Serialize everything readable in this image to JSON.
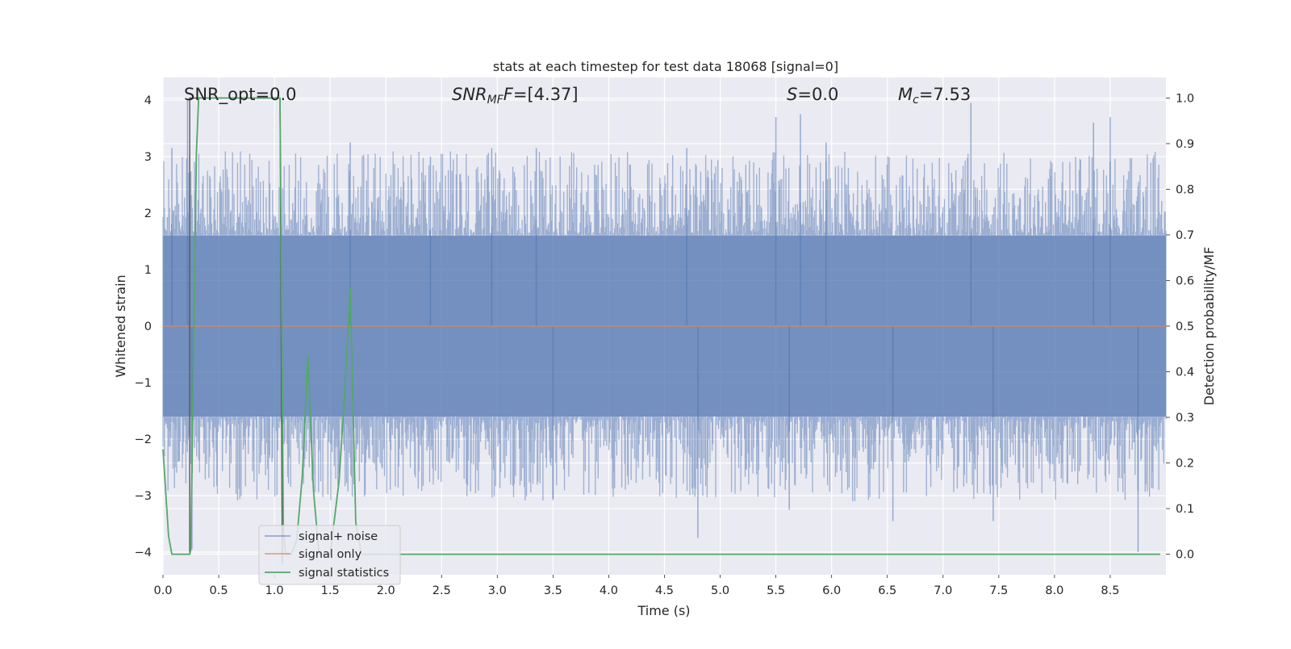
{
  "chart_data": {
    "type": "line",
    "title": "stats at each timestep for test data 18068 [signal=0]",
    "xlabel": "Time (s)",
    "ylabel": "Whitened strain",
    "y2label": "Detection probability/MF",
    "xlim": [
      0.0,
      9.0
    ],
    "ylim": [
      -4.4,
      4.4
    ],
    "y2lim": [
      -0.045,
      1.045
    ],
    "x_ticks": [
      "0.0",
      "0.5",
      "1.0",
      "1.5",
      "2.0",
      "2.5",
      "3.0",
      "3.5",
      "4.0",
      "4.5",
      "5.0",
      "5.5",
      "6.0",
      "6.5",
      "7.0",
      "7.5",
      "8.0",
      "8.5"
    ],
    "y_ticks": [
      "4",
      "3",
      "2",
      "1",
      "0",
      "−1",
      "−2",
      "−3",
      "−4"
    ],
    "y2_ticks": [
      "1.0",
      "0.9",
      "0.8",
      "0.7",
      "0.6",
      "0.5",
      "0.4",
      "0.3",
      "0.2",
      "0.1",
      "0.0"
    ],
    "grid": true,
    "legend_position": "lower-left",
    "annotations": {
      "snr_opt": "SNR_opt=0.0",
      "snr_mf_main": "SNR",
      "snr_mf_sub": "MF",
      "snr_mf_value": "=[4.37]",
      "s_main": "S",
      "s_value": "=0.0",
      "mc_main": "M",
      "mc_sub": "c",
      "mc_value": "=7.53"
    },
    "colors": {
      "background": "#EAEAF2",
      "grid": "#FFFFFF",
      "noise": "#4C72B0",
      "signal_only": "#DD8452",
      "statistics": "#55A868",
      "marker": "#555555"
    },
    "series": [
      {
        "name": "signal+ noise",
        "style": "dense random noise band, |y| mostly up to ~2.5 with spikes to ~4",
        "x_range": [
          0.0,
          9.0
        ],
        "noise_band_abs": 1.6,
        "peak_spikes": [
          {
            "x": 0.08,
            "y": 3.15
          },
          {
            "x": 0.22,
            "y": 4.0
          },
          {
            "x": 0.26,
            "y": -3.95
          },
          {
            "x": 1.68,
            "y": 3.25
          },
          {
            "x": 2.4,
            "y": 3.0
          },
          {
            "x": 2.95,
            "y": 3.15
          },
          {
            "x": 3.35,
            "y": 3.15
          },
          {
            "x": 3.5,
            "y": -3.05
          },
          {
            "x": 4.7,
            "y": 3.15
          },
          {
            "x": 4.8,
            "y": -3.75
          },
          {
            "x": 5.5,
            "y": 3.7
          },
          {
            "x": 5.62,
            "y": -3.25
          },
          {
            "x": 5.72,
            "y": 3.75
          },
          {
            "x": 5.95,
            "y": 3.25
          },
          {
            "x": 6.55,
            "y": -3.45
          },
          {
            "x": 7.25,
            "y": 3.95
          },
          {
            "x": 7.45,
            "y": -3.45
          },
          {
            "x": 8.35,
            "y": 3.6
          },
          {
            "x": 8.5,
            "y": 3.7
          },
          {
            "x": 8.75,
            "y": -4.0
          }
        ]
      },
      {
        "name": "signal only",
        "x": [
          0.0,
          9.0
        ],
        "y": [
          0.0,
          0.0
        ]
      },
      {
        "name": "signal statistics",
        "axis": "right",
        "x": [
          0.0,
          0.05,
          0.08,
          0.24,
          0.25,
          0.3,
          0.32,
          1.05,
          1.08,
          1.1,
          1.15,
          1.2,
          1.25,
          1.3,
          1.35,
          1.4,
          1.5,
          1.58,
          1.63,
          1.68,
          1.73,
          1.78,
          1.85,
          2.0,
          8.95
        ],
        "y": [
          0.23,
          0.04,
          0.0,
          0.0,
          0.01,
          0.88,
          1.0,
          1.0,
          0.05,
          0.0,
          0.0,
          0.03,
          0.17,
          0.435,
          0.14,
          0.0,
          0.0,
          0.16,
          0.35,
          0.585,
          0.07,
          0.0,
          0.0,
          0.0,
          0.0
        ]
      },
      {
        "name": "",
        "style": "vertical marker",
        "axis": "right",
        "x": [
          0.24,
          0.24,
          1.05,
          1.07,
          1.07
        ],
        "y": [
          0.0,
          1.0,
          1.0,
          0.0,
          -0.02
        ]
      }
    ]
  },
  "legend": {
    "items": [
      {
        "label": "signal+ noise"
      },
      {
        "label": "signal only"
      },
      {
        "label": "signal statistics"
      }
    ]
  }
}
